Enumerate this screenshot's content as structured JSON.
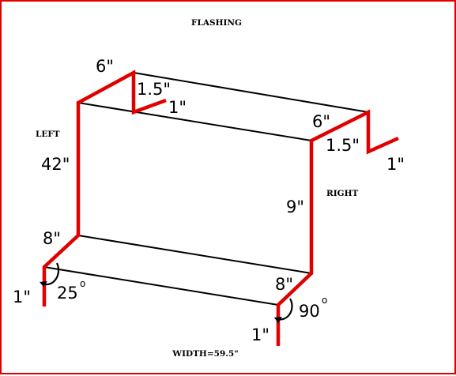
{
  "title": "FLASHING",
  "side_labels": {
    "left": "LEFT",
    "right": "RIGHT"
  },
  "width_label": "WIDTH=59.5\"",
  "dimensions": {
    "top_left_leg": "6\"",
    "top_left_drop": "1.5\"",
    "top_left_return": "1\"",
    "top_right_leg": "6\"",
    "top_right_drop": "1.5\"",
    "top_right_return": "1\"",
    "left_height": "42\"",
    "right_height": "9\"",
    "bottom_left_leg": "8\"",
    "bottom_left_return": "1\"",
    "bottom_right_leg": "8\"",
    "bottom_right_return": "1\""
  },
  "angles": {
    "left": {
      "value": "25",
      "unit": "o"
    },
    "right": {
      "value": "90",
      "unit": "o"
    }
  },
  "colors": {
    "profile": "#e00000",
    "edges": "#000000",
    "border": "#e00000"
  }
}
